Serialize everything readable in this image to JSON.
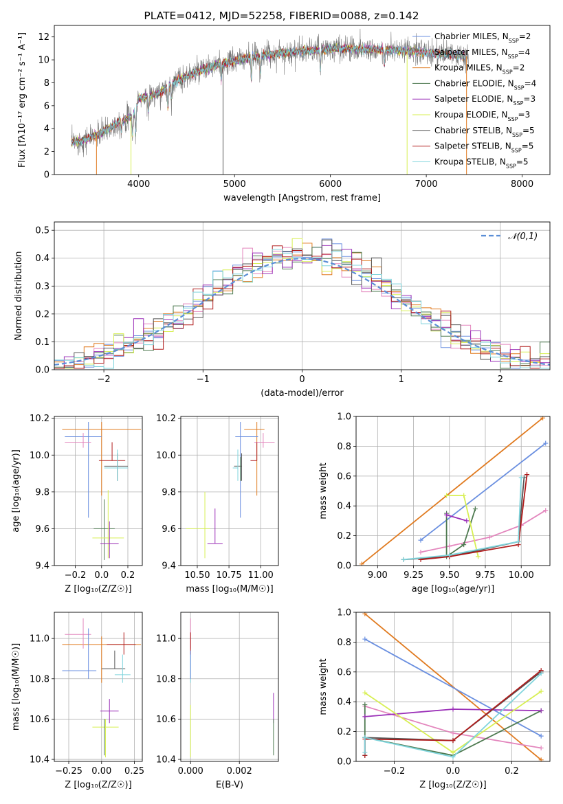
{
  "colors": {
    "Chabrier MILES": "#6a8fe0",
    "Salpeter MILES": "#e386bd",
    "Kroupa MILES": "#e07a1f",
    "Chabrier ELODIE": "#4e7a50",
    "Salpeter ELODIE": "#9b30b8",
    "Kroupa ELODIE": "#d7ef52",
    "Chabrier STELIB": "#555555",
    "Salpeter STELIB": "#b01c1c",
    "Kroupa STELIB": "#7fd4dc",
    "normal": "#5b8ed6"
  },
  "chart_data": [
    {
      "id": "spectrum",
      "type": "line",
      "title": "PLATE=0412, MJD=52258, FIBERID=0088, z=0.142",
      "xlabel": "wavelength [Angstrom, rest frame]",
      "ylabel": "Flux [fλ10⁻¹⁷ erg cm⁻² s⁻¹ A⁻¹]",
      "xlim": [
        3120,
        8290
      ],
      "ylim": [
        0,
        13
      ],
      "xticks": [
        "4000",
        "5000",
        "6000",
        "7000",
        "8000"
      ],
      "yticks": [
        "0",
        "2",
        "4",
        "6",
        "8",
        "10",
        "12"
      ],
      "grid": false,
      "legend_position": "top-right",
      "legend": [
        "Chabrier MILES, N_SSP=2",
        "Salpeter MILES, N_SSP=4",
        "Kroupa MILES, N_SSP=2",
        "Chabrier ELODIE, N_SSP=4",
        "Salpeter ELODIE, N_SSP=3",
        "Kroupa ELODIE, N_SSP=3",
        "Chabrier STELIB, N_SSP=5",
        "Salpeter STELIB, N_SSP=5",
        "Kroupa STELIB, N_SSP=5"
      ],
      "continuum_x": [
        3300,
        3400,
        3550,
        3650,
        3800,
        3950,
        4000,
        4200,
        4400,
        4600,
        4800,
        5000,
        5200,
        5500,
        5800,
        6100,
        6500,
        6900,
        7200,
        7400
      ],
      "continuum_y": [
        2.8,
        2.9,
        3.4,
        3.8,
        4.6,
        5.2,
        6.6,
        7.0,
        8.2,
        8.9,
        9.5,
        9.9,
        10.3,
        10.6,
        10.8,
        11.0,
        10.9,
        10.7,
        10.5,
        10.3
      ],
      "data_range": [
        3300,
        7440
      ],
      "model_range": [
        3300,
        7400
      ]
    },
    {
      "id": "residuals",
      "type": "histogram",
      "xlabel": "(data-model)/error",
      "ylabel": "Normed distribution",
      "xlim": [
        -2.5,
        2.5
      ],
      "ylim": [
        0,
        0.53
      ],
      "xticks": [
        "−2",
        "−1",
        "0",
        "1",
        "2"
      ],
      "yticks": [
        "0.0",
        "0.1",
        "0.2",
        "0.3",
        "0.4",
        "0.5"
      ],
      "grid": true,
      "legend_position": "top-right",
      "legend": [
        "𝒩(0,1)"
      ],
      "bin_width": 0.1,
      "bin_start": -2.5
    },
    {
      "id": "age-Z",
      "type": "errorbar",
      "xlabel": "Z [log₁₀(Z/Z☉)]",
      "ylabel": "age  [log₁₀(age/yr)]",
      "xlim": [
        -0.36,
        0.31
      ],
      "ylim": [
        9.4,
        10.21
      ],
      "xticks": [
        "−0.2",
        "0.0",
        "0.2"
      ],
      "yticks": [
        "9.4",
        "9.6",
        "9.8",
        "10.0",
        "10.2"
      ],
      "grid": true,
      "points": [
        {
          "model": "Kroupa MILES",
          "x": 0.0,
          "xerr": [
            0.3,
            0.3
          ],
          "y": 10.14,
          "yerr": [
            0.36,
            0.04
          ]
        },
        {
          "model": "Chabrier MILES",
          "x": -0.1,
          "xerr": [
            0.18,
            0.1
          ],
          "y": 10.1,
          "yerr": [
            0.44,
            0.08
          ]
        },
        {
          "model": "Salpeter MILES",
          "x": -0.14,
          "xerr": [
            0.14,
            0.06
          ],
          "y": 10.07,
          "yerr": [
            0.03,
            0.05
          ]
        },
        {
          "model": "Salpeter STELIB",
          "x": 0.08,
          "xerr": [
            0.1,
            0.1
          ],
          "y": 9.97,
          "yerr": [
            0.0,
            0.1
          ]
        },
        {
          "model": "Chabrier STELIB",
          "x": 0.12,
          "xerr": [
            0.1,
            0.08
          ],
          "y": 9.94,
          "yerr": [
            0.08,
            0.07
          ]
        },
        {
          "model": "Kroupa STELIB",
          "x": 0.12,
          "xerr": [
            0.1,
            0.08
          ],
          "y": 9.93,
          "yerr": [
            0.07,
            0.1
          ]
        },
        {
          "model": "Chabrier ELODIE",
          "x": 0.02,
          "xerr": [
            0.08,
            0.08
          ],
          "y": 9.6,
          "yerr": [
            0.17,
            0.16
          ]
        },
        {
          "model": "Kroupa ELODIE",
          "x": 0.05,
          "xerr": [
            0.12,
            0.12
          ],
          "y": 9.55,
          "yerr": [
            0.11,
            0.26
          ]
        },
        {
          "model": "Salpeter ELODIE",
          "x": 0.06,
          "xerr": [
            0.07,
            0.07
          ],
          "y": 9.52,
          "yerr": [
            0.08,
            0.12
          ]
        }
      ]
    },
    {
      "id": "age-mass",
      "type": "errorbar",
      "xlabel": "mass [log₁₀(M/M☉)]",
      "ylabel": "",
      "xlim": [
        10.37,
        11.14
      ],
      "ylim": [
        9.4,
        10.21
      ],
      "xticks": [
        "10.50",
        "10.75",
        "11.00"
      ],
      "yticks": [
        "9.4",
        "9.6",
        "9.8",
        "10.0",
        "10.2"
      ],
      "grid": true,
      "points": [
        {
          "model": "Kroupa MILES",
          "x": 10.97,
          "xerr": [
            0.1,
            0.06
          ],
          "y": 10.14,
          "yerr": [
            0.36,
            0.04
          ]
        },
        {
          "model": "Chabrier MILES",
          "x": 10.84,
          "xerr": [
            0.04,
            0.14
          ],
          "y": 10.1,
          "yerr": [
            0.44,
            0.08
          ]
        },
        {
          "model": "Salpeter MILES",
          "x": 11.02,
          "xerr": [
            0.07,
            0.09
          ],
          "y": 10.07,
          "yerr": [
            0.03,
            0.05
          ]
        },
        {
          "model": "Salpeter STELIB",
          "x": 10.97,
          "xerr": [
            0.05,
            0.0
          ],
          "y": 9.97,
          "yerr": [
            0.0,
            0.1
          ]
        },
        {
          "model": "Chabrier STELIB",
          "x": 10.85,
          "xerr": [
            0.06,
            0.0
          ],
          "y": 9.94,
          "yerr": [
            0.08,
            0.07
          ]
        },
        {
          "model": "Kroupa STELIB",
          "x": 10.82,
          "xerr": [
            0.04,
            0.0
          ],
          "y": 9.93,
          "yerr": [
            0.07,
            0.1
          ]
        },
        {
          "model": "Chabrier ELODIE",
          "x": 10.84,
          "xerr": [
            0.0,
            0.0
          ],
          "y": 9.93,
          "yerr": [
            0.07,
            0.06
          ]
        },
        {
          "model": "Kroupa ELODIE",
          "x": 10.56,
          "xerr": [
            0.15,
            0.04
          ],
          "y": 9.6,
          "yerr": [
            0.16,
            0.2
          ]
        },
        {
          "model": "Salpeter ELODIE",
          "x": 10.64,
          "xerr": [
            0.06,
            0.06
          ],
          "y": 9.52,
          "yerr": [
            0.0,
            0.19
          ]
        }
      ]
    },
    {
      "id": "weight-age",
      "type": "line",
      "xlabel": "age  [log₁₀(age/yr)]",
      "ylabel": "mass weight",
      "xlim": [
        8.85,
        10.2
      ],
      "ylim": [
        0,
        1
      ],
      "xticks": [
        "9.00",
        "9.25",
        "9.50",
        "9.75",
        "10.00"
      ],
      "yticks": [
        "0.0",
        "0.2",
        "0.4",
        "0.6",
        "0.8",
        "1.0"
      ],
      "grid": true,
      "series": [
        {
          "model": "Kroupa MILES",
          "x": [
            8.89,
            10.15
          ],
          "y": [
            0.01,
            0.99
          ]
        },
        {
          "model": "Chabrier MILES",
          "x": [
            9.3,
            10.17
          ],
          "y": [
            0.17,
            0.82
          ]
        },
        {
          "model": "Salpeter MILES",
          "x": [
            9.3,
            9.5,
            9.78,
            10.0,
            10.17
          ],
          "y": [
            0.09,
            0.13,
            0.19,
            0.27,
            0.37
          ]
        },
        {
          "model": "Chabrier ELODIE",
          "x": [
            9.48,
            9.48,
            9.6,
            9.68
          ],
          "y": [
            0.35,
            0.06,
            0.14,
            0.38
          ]
        },
        {
          "model": "Salpeter ELODIE",
          "x": [
            9.48,
            9.62
          ],
          "y": [
            0.34,
            0.3
          ]
        },
        {
          "model": "Kroupa ELODIE",
          "x": [
            9.48,
            9.6,
            9.7
          ],
          "y": [
            0.47,
            0.47,
            0.06
          ]
        },
        {
          "model": "Chabrier STELIB",
          "x": [
            9.18,
            9.5,
            9.98,
            10.02
          ],
          "y": [
            0.04,
            0.06,
            0.16,
            0.59
          ]
        },
        {
          "model": "Salpeter STELIB",
          "x": [
            9.3,
            9.5,
            9.98,
            10.04
          ],
          "y": [
            0.04,
            0.06,
            0.14,
            0.61
          ]
        },
        {
          "model": "Kroupa STELIB",
          "x": [
            9.18,
            9.5,
            9.98,
            10.0
          ],
          "y": [
            0.04,
            0.07,
            0.16,
            0.59
          ]
        }
      ]
    },
    {
      "id": "mass-Z",
      "type": "errorbar",
      "xlabel": "Z [log₁₀(Z/Z☉)]",
      "ylabel": "mass [log₁₀(M/M☉)]",
      "xlim": [
        -0.36,
        0.31
      ],
      "ylim": [
        10.39,
        11.13
      ],
      "xticks": [
        "−0.25",
        "0.00",
        "0.25"
      ],
      "yticks": [
        "10.4",
        "10.6",
        "10.8",
        "11.0"
      ],
      "grid": true,
      "points": [
        {
          "model": "Kroupa MILES",
          "x": 0.0,
          "xerr": [
            0.3,
            0.3
          ],
          "y": 10.97,
          "yerr": [
            0.19,
            0.04
          ]
        },
        {
          "model": "Salpeter MILES",
          "x": -0.14,
          "xerr": [
            0.14,
            0.06
          ],
          "y": 11.02,
          "yerr": [
            0.07,
            0.08
          ]
        },
        {
          "model": "Chabrier MILES",
          "x": -0.1,
          "xerr": [
            0.2,
            0.06
          ],
          "y": 10.84,
          "yerr": [
            0.04,
            0.21
          ]
        },
        {
          "model": "Salpeter STELIB",
          "x": 0.17,
          "xerr": [
            0.13,
            0.09
          ],
          "y": 10.97,
          "yerr": [
            0.05,
            0.06
          ]
        },
        {
          "model": "Chabrier STELIB",
          "x": 0.1,
          "xerr": [
            0.1,
            0.08
          ],
          "y": 10.85,
          "yerr": [
            0.0,
            0.09
          ]
        },
        {
          "model": "Kroupa STELIB",
          "x": 0.16,
          "xerr": [
            0.06,
            0.06
          ],
          "y": 10.82,
          "yerr": [
            0.04,
            0.1
          ]
        },
        {
          "model": "Salpeter ELODIE",
          "x": 0.06,
          "xerr": [
            0.07,
            0.07
          ],
          "y": 10.64,
          "yerr": [
            0.06,
            0.06
          ]
        },
        {
          "model": "Kroupa ELODIE",
          "x": 0.03,
          "xerr": [
            0.1,
            0.1
          ],
          "y": 10.56,
          "yerr": [
            0.15,
            0.04
          ]
        },
        {
          "model": "Chabrier ELODIE",
          "x": 0.02,
          "xerr": [
            0.0,
            0.0
          ],
          "y": 10.55,
          "yerr": [
            0.13,
            0.05
          ]
        }
      ]
    },
    {
      "id": "mass-EBV",
      "type": "errorbar",
      "xlabel": "E(B-V)",
      "ylabel": "",
      "xlim": [
        -0.0004,
        0.0036
      ],
      "ylim": [
        10.39,
        11.13
      ],
      "xticks": [
        "0.000",
        "0.002"
      ],
      "yticks": [
        "10.4",
        "10.6",
        "10.8",
        "11.0"
      ],
      "grid": true,
      "points": [
        {
          "model": "Salpeter MILES",
          "x": 0.0,
          "xerr": [
            0,
            0
          ],
          "y": 11.02,
          "yerr": [
            0.07,
            0.08
          ]
        },
        {
          "model": "Salpeter STELIB",
          "x": 0.0,
          "xerr": [
            0,
            0
          ],
          "y": 10.97,
          "yerr": [
            0.05,
            0.06
          ]
        },
        {
          "model": "Kroupa STELIB",
          "x": 0.0,
          "xerr": [
            0,
            0
          ],
          "y": 10.82,
          "yerr": [
            0.04,
            0.1
          ]
        },
        {
          "model": "Chabrier MILES",
          "x": 0.0,
          "xerr": [
            0,
            0
          ],
          "y": 10.84,
          "yerr": [
            0.04,
            0.1
          ]
        },
        {
          "model": "Kroupa ELODIE",
          "x": 0.0,
          "xerr": [
            0,
            0
          ],
          "y": 10.56,
          "yerr": [
            0.15,
            0.11
          ]
        },
        {
          "model": "Salpeter ELODIE",
          "x": 0.0034,
          "xerr": [
            0,
            0
          ],
          "y": 10.64,
          "yerr": [
            0.06,
            0.09
          ]
        },
        {
          "model": "Chabrier ELODIE",
          "x": 0.0034,
          "xerr": [
            0,
            0
          ],
          "y": 10.55,
          "yerr": [
            0.13,
            0.05
          ]
        }
      ]
    },
    {
      "id": "weight-Z",
      "type": "line",
      "xlabel": "Z [log₁₀(Z/Z☉)]",
      "ylabel": "mass weight",
      "xlim": [
        -0.33,
        0.33
      ],
      "ylim": [
        0,
        1
      ],
      "xticks": [
        "−0.2",
        "0.0",
        "0.2"
      ],
      "yticks": [
        "0.0",
        "0.2",
        "0.4",
        "0.6",
        "0.8",
        "1.0"
      ],
      "grid": true,
      "series": [
        {
          "model": "Kroupa MILES",
          "x": [
            -0.3,
            0.3
          ],
          "y": [
            0.99,
            0.01
          ]
        },
        {
          "model": "Chabrier MILES",
          "x": [
            -0.3,
            0.3
          ],
          "y": [
            0.82,
            0.17
          ]
        },
        {
          "model": "Salpeter MILES",
          "x": [
            -0.3,
            0.0,
            0.3
          ],
          "y": [
            0.37,
            0.19,
            0.09
          ]
        },
        {
          "model": "Chabrier ELODIE",
          "x": [
            -0.3,
            -0.3,
            0.0,
            0.3
          ],
          "y": [
            0.38,
            0.16,
            0.04,
            0.34
          ]
        },
        {
          "model": "Salpeter ELODIE",
          "x": [
            -0.3,
            0.0,
            0.3
          ],
          "y": [
            0.3,
            0.35,
            0.34
          ]
        },
        {
          "model": "Kroupa ELODIE",
          "x": [
            -0.3,
            0.0,
            0.3
          ],
          "y": [
            0.46,
            0.06,
            0.47
          ]
        },
        {
          "model": "Chabrier STELIB",
          "x": [
            -0.3,
            -0.3,
            0.0,
            0.3
          ],
          "y": [
            0.04,
            0.16,
            0.14,
            0.6
          ]
        },
        {
          "model": "Salpeter STELIB",
          "x": [
            -0.3,
            -0.3,
            0.0,
            0.3
          ],
          "y": [
            0.04,
            0.15,
            0.14,
            0.61
          ]
        },
        {
          "model": "Kroupa STELIB",
          "x": [
            -0.3,
            -0.3,
            0.0,
            0.3
          ],
          "y": [
            0.06,
            0.16,
            0.03,
            0.59
          ]
        }
      ]
    }
  ]
}
